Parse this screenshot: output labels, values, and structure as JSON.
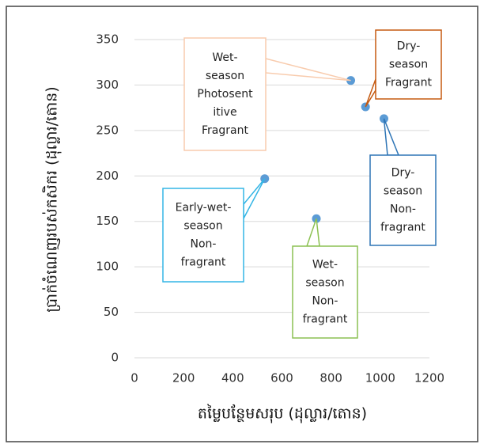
{
  "chart_data": {
    "type": "scatter",
    "xlabel": "តម្លៃបន្ថែមសរុប (ដុល្លារ/តោន)",
    "ylabel": "ប្រាក់ចំណេញរបស់កសិករ (ដុល្លារ/តោន)",
    "x": [
      880,
      940,
      1015,
      530,
      740
    ],
    "values": [
      305,
      276,
      263,
      197,
      153
    ],
    "color": "#5b9bd5",
    "xlim": [
      0,
      1200
    ],
    "xticks": [
      0,
      200,
      400,
      600,
      800,
      1000,
      1200
    ],
    "ylim": [
      0,
      350
    ],
    "yticks": [
      0,
      50,
      100,
      150,
      200,
      250,
      300,
      350
    ],
    "grid": true,
    "annotations": [
      {
        "text": [
          "Wet-",
          "season",
          "Photosent",
          "itive",
          "Fragrant"
        ],
        "color": "#f8cbad"
      },
      {
        "text": [
          "Dry-",
          "season",
          "Fragrant"
        ],
        "color": "#c55a11"
      },
      {
        "text": [
          "Dry-",
          "season",
          "Non-",
          "fragrant"
        ],
        "color": "#2e75b6"
      },
      {
        "text": [
          "Early-wet-",
          "season",
          "Non-",
          "fragrant"
        ],
        "color": "#33b5e5"
      },
      {
        "text": [
          "Wet-",
          "season",
          "Non-",
          "fragrant"
        ],
        "color": "#8cc152"
      }
    ]
  }
}
